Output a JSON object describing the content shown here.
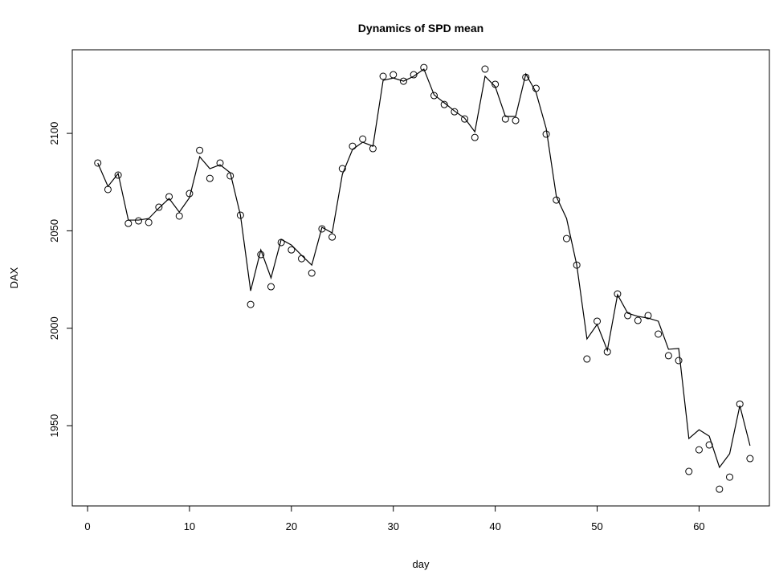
{
  "chart_data": {
    "type": "line",
    "title": "Dynamics of SPD mean",
    "x_label": "day",
    "y_label": "DAX",
    "x": [
      1,
      2,
      3,
      4,
      5,
      6,
      7,
      8,
      9,
      10,
      11,
      12,
      13,
      14,
      15,
      16,
      17,
      18,
      19,
      20,
      21,
      22,
      23,
      24,
      25,
      26,
      27,
      28,
      29,
      30,
      31,
      32,
      33,
      34,
      35,
      36,
      37,
      38,
      39,
      40,
      41,
      42,
      43,
      44,
      45,
      46,
      47,
      48,
      49,
      50,
      51,
      52,
      53,
      54,
      55,
      56,
      57,
      58,
      59,
      60,
      61,
      62,
      63,
      64,
      65
    ],
    "series": [
      {
        "style": "points",
        "color": "#000000",
        "values": [
          2084.8,
          2071.2,
          2078.6,
          2053.8,
          2055.1,
          2054.3,
          2062.1,
          2067.5,
          2057.6,
          2069.1,
          2091.3,
          2076.9,
          2084.8,
          2078.2,
          2058.0,
          2012.2,
          2037.8,
          2021.3,
          2044.0,
          2040.2,
          2035.7,
          2028.3,
          2051.0,
          2046.8,
          2081.9,
          2093.4,
          2097.1,
          2092.2,
          2129.3,
          2130.1,
          2126.8,
          2130.1,
          2133.8,
          2119.4,
          2114.8,
          2111.1,
          2107.4,
          2097.9,
          2133.0,
          2125.2,
          2107.4,
          2106.6,
          2128.8,
          2123.1,
          2099.6,
          2065.8,
          2046.0,
          2032.4,
          1984.2,
          2003.6,
          1987.9,
          2017.6,
          2006.5,
          2004.0,
          2006.5,
          1997.0,
          1985.9,
          1983.4,
          1926.5,
          1937.6,
          1940.1,
          1917.4,
          1923.6,
          1961.1,
          1933.1
        ]
      },
      {
        "style": "line",
        "color": "#000000",
        "values": [
          2084.8,
          2072.8,
          2079.4,
          2055.5,
          2055.5,
          2056.3,
          2061.7,
          2066.6,
          2059.6,
          2067.0,
          2088.0,
          2081.9,
          2083.9,
          2079.8,
          2058.0,
          2019.2,
          2040.2,
          2025.8,
          2045.6,
          2042.7,
          2037.4,
          2032.4,
          2051.8,
          2048.9,
          2079.0,
          2091.8,
          2095.5,
          2093.4,
          2127.2,
          2128.4,
          2126.8,
          2129.3,
          2133.0,
          2119.8,
          2115.7,
          2111.5,
          2107.8,
          2100.8,
          2129.3,
          2124.0,
          2108.7,
          2108.7,
          2130.5,
          2121.1,
          2102.5,
          2067.5,
          2056.3,
          2032.4,
          1994.5,
          2002.0,
          1988.7,
          2017.2,
          2007.7,
          2006.1,
          2005.2,
          2003.6,
          1989.2,
          1989.6,
          1943.4,
          1947.9,
          1944.6,
          1928.6,
          1935.6,
          1960.3,
          1939.7
        ]
      }
    ],
    "xlim": [
      -1.5,
      66.9
    ],
    "ylim": [
      1908.8,
      2142.9
    ],
    "xticks": [
      0,
      10,
      20,
      30,
      40,
      50,
      60
    ],
    "yticks": [
      1950,
      2000,
      2050,
      2100
    ],
    "grid": false
  }
}
